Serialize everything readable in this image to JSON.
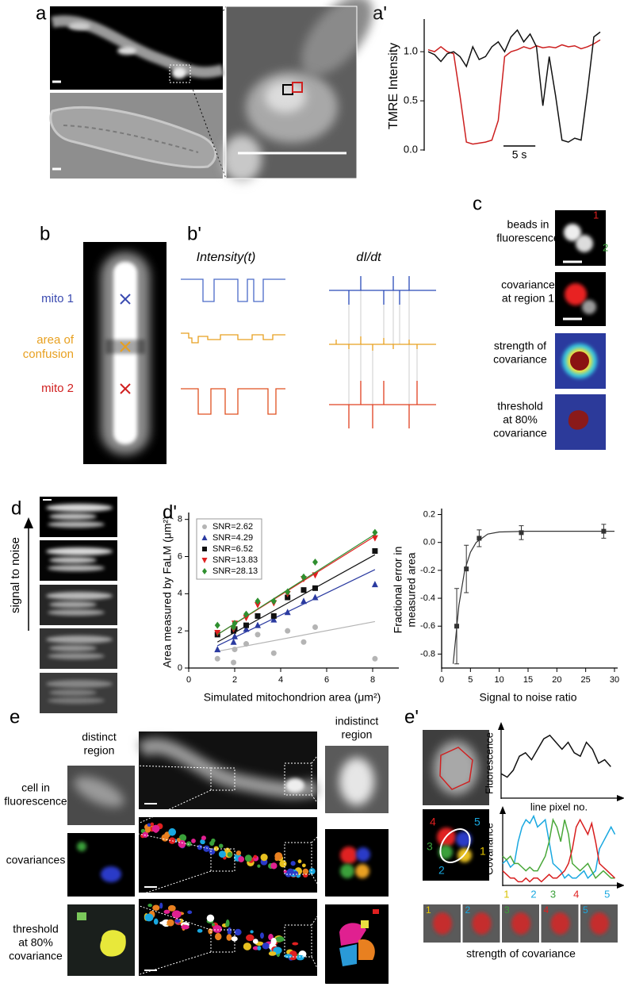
{
  "figure": {
    "panel_labels": [
      "a",
      "a'",
      "b",
      "b'",
      "c",
      "d",
      "d'",
      "e",
      "e'"
    ],
    "b": {
      "mito1": "mito 1",
      "confusion": [
        "area of",
        "confusion"
      ],
      "mito2": "mito 2"
    },
    "b_prime": {
      "intensity": "Intensity(t)",
      "derivative": "dI/dt"
    },
    "c": {
      "rows": [
        [
          "beads in",
          "fluorescence"
        ],
        [
          "covariance",
          "at region 1"
        ],
        [
          "strength of",
          "covariance"
        ],
        [
          "threshold",
          "at 80%",
          "covariance"
        ]
      ],
      "bead_labels": [
        "1",
        "2"
      ]
    },
    "d": {
      "axis_label": "signal to noise"
    },
    "e": {
      "columns": [
        [
          "distinct",
          "region"
        ],
        [
          "indistinct",
          "region"
        ]
      ],
      "rows": [
        [
          "cell in",
          "fluorescence"
        ],
        [
          "covariances"
        ],
        [
          "threshold",
          "at 80%",
          "covariance"
        ]
      ]
    },
    "e_prime": {
      "region_labels": [
        "4",
        "5",
        "3",
        "1",
        "2"
      ],
      "thumb_labels": [
        "1",
        "2",
        "3",
        "4",
        "5"
      ],
      "caption": "strength of covariance"
    }
  },
  "chart_data": [
    {
      "type": "line",
      "ylabel": "TMRE Intensity",
      "x": [
        0,
        1,
        2,
        3,
        4,
        5,
        6,
        7,
        8,
        9,
        10,
        11,
        12,
        13,
        14,
        15,
        16,
        17,
        18,
        19,
        20,
        21,
        22,
        23,
        24,
        25,
        26,
        27
      ],
      "xlim": [
        0,
        27
      ],
      "ylim": [
        0,
        1.3
      ],
      "yticks": [
        {
          "value": 0,
          "label": "0.0"
        },
        {
          "value": 0.5,
          "label": "0.5"
        },
        {
          "value": 1,
          "label": "1.0"
        }
      ],
      "scale_bar": {
        "length": 5,
        "label": "5 s"
      },
      "series": [
        {
          "color": "#cc1f1f",
          "values": [
            1.02,
            1.0,
            1.05,
            1.0,
            0.98,
            0.55,
            0.08,
            0.06,
            0.07,
            0.08,
            0.1,
            0.3,
            0.95,
            1.0,
            1.02,
            1.05,
            1.03,
            1.06,
            1.04,
            1.05,
            1.04,
            1.07,
            1.05,
            1.06,
            1.03,
            1.05,
            1.08,
            1.12
          ]
        },
        {
          "color": "#111111",
          "values": [
            1.0,
            0.97,
            0.9,
            0.98,
            1.0,
            0.95,
            0.85,
            1.05,
            0.92,
            0.95,
            1.05,
            1.1,
            1.0,
            1.15,
            1.22,
            1.1,
            1.18,
            1.05,
            0.45,
            0.95,
            0.55,
            0.1,
            0.08,
            0.12,
            0.1,
            0.6,
            1.15,
            1.2
          ]
        }
      ]
    },
    {
      "type": "scatter",
      "xlabel": "Simulated mitochondrion area (μm²)",
      "ylabel": "Area measured by FaLM (μm²)",
      "x": [
        1.25,
        1.95,
        2.0,
        2.5,
        3.0,
        3.7,
        4.3,
        5.0,
        5.5,
        8.1
      ],
      "xlim": [
        0,
        9
      ],
      "xticks": [
        0,
        2,
        4,
        6,
        8
      ],
      "ylim": [
        0,
        8.2
      ],
      "yticks": [
        0,
        2,
        4,
        6,
        8
      ],
      "legend": "upper left",
      "series": [
        {
          "name": "SNR=2.62",
          "color": "#b4b4b4",
          "marker": "circle",
          "values": [
            0.5,
            0.3,
            1.0,
            1.3,
            1.8,
            0.8,
            2.0,
            1.4,
            2.2,
            0.5
          ],
          "fit": {
            "x": [
              1.25,
              8.1
            ],
            "values": [
              0.9,
              2.5
            ]
          }
        },
        {
          "name": "SNR=4.29",
          "color": "#2a3aa0",
          "marker": "triangle",
          "values": [
            1.0,
            1.4,
            1.7,
            2.1,
            2.3,
            2.6,
            3.0,
            3.6,
            3.8,
            4.5
          ],
          "fit": {
            "x": [
              1.25,
              8.1
            ],
            "values": [
              1.2,
              5.3
            ]
          }
        },
        {
          "name": "SNR=6.52",
          "color": "#111111",
          "marker": "square",
          "values": [
            1.8,
            2.0,
            2.1,
            2.3,
            2.8,
            2.8,
            3.8,
            4.2,
            4.3,
            6.3
          ],
          "fit": {
            "x": [
              1.25,
              8.1
            ],
            "values": [
              1.4,
              6.1
            ]
          }
        },
        {
          "name": "SNR=13.83",
          "color": "#e02020",
          "marker": "triangle-down",
          "values": [
            1.9,
            2.1,
            2.4,
            2.7,
            3.4,
            3.5,
            4.0,
            4.8,
            5.0,
            7.0
          ],
          "fit": {
            "x": [
              1.25,
              8.1
            ],
            "values": [
              1.8,
              7.1
            ]
          }
        },
        {
          "name": "SNR=28.13",
          "color": "#2f8f2f",
          "marker": "diamond",
          "values": [
            2.3,
            2.2,
            2.4,
            2.9,
            3.6,
            3.6,
            4.1,
            4.9,
            5.7,
            7.3
          ],
          "fit": {
            "x": [
              1.25,
              8.1
            ],
            "values": [
              1.8,
              7.2
            ]
          }
        }
      ]
    },
    {
      "type": "errorbar",
      "xlabel": "Signal to noise ratio",
      "ylabel": [
        "Fractional error in",
        "measured area"
      ],
      "x": [
        2.62,
        4.29,
        6.52,
        13.83,
        28.13
      ],
      "values": [
        -0.6,
        -0.19,
        0.03,
        0.07,
        0.08
      ],
      "errors": [
        0.27,
        0.17,
        0.06,
        0.05,
        0.05
      ],
      "xlim": [
        0,
        30
      ],
      "xticks": [
        0,
        5,
        10,
        15,
        20,
        25,
        30
      ],
      "ylim": [
        -0.9,
        0.22
      ],
      "yticks": [
        0.2,
        {
          "value": 0,
          "label": "0.0"
        },
        -0.2,
        -0.4,
        -0.6,
        -0.8
      ],
      "color": "#333333",
      "fit": {
        "x": [
          2,
          3,
          4,
          5,
          6,
          8,
          10,
          15,
          20,
          30
        ],
        "values": [
          -0.87,
          -0.45,
          -0.2,
          -0.07,
          0.0,
          0.06,
          0.075,
          0.08,
          0.08,
          0.08
        ]
      }
    },
    {
      "type": "line",
      "xlabel": "line pixel no.",
      "ylabel": "Fluorescence",
      "x": [
        0,
        1,
        2,
        3,
        4,
        5,
        6,
        7,
        8,
        9,
        10,
        11,
        12,
        13,
        14,
        15,
        16,
        17,
        18
      ],
      "xlim": [
        0,
        19
      ],
      "ylim": [
        0,
        10
      ],
      "series": [
        {
          "color": "#111111",
          "values": [
            3.5,
            3,
            4,
            6,
            6.5,
            5.5,
            7,
            8.5,
            9,
            8,
            7,
            8,
            6.5,
            6,
            8,
            7,
            5,
            5.5,
            4.5
          ]
        }
      ]
    },
    {
      "type": "line",
      "ylabel": "Covariance",
      "x": [
        0,
        1,
        2,
        3,
        4,
        5,
        6,
        7,
        8,
        9,
        10,
        11,
        12,
        13,
        14,
        15,
        16,
        17,
        18,
        19,
        20,
        21,
        22,
        23,
        24,
        25,
        26,
        27,
        28,
        29
      ],
      "xlim": [
        0,
        29.5
      ],
      "ylim": [
        0,
        10
      ],
      "xticks": [
        {
          "value": 1,
          "label": "1"
        },
        {
          "value": 8,
          "label": "2"
        },
        {
          "value": 13,
          "label": "3"
        },
        {
          "value": 19,
          "label": "4"
        },
        {
          "value": 27,
          "label": "5"
        }
      ],
      "xtick_colors": [
        "#d9c200",
        "#19a8e0",
        "#3aa03a",
        "#e02020",
        "#19a8e0"
      ],
      "series": [
        {
          "color": "#19a8e0",
          "values": [
            3,
            3.5,
            2.5,
            3,
            6,
            8,
            9,
            8.5,
            9.5,
            8,
            8.5,
            9,
            6,
            3,
            2.5,
            2,
            1,
            1.5,
            1,
            1,
            1.5,
            2,
            1,
            1.5,
            2,
            5,
            6,
            7,
            8,
            7
          ]
        },
        {
          "color": "#4aa83a",
          "values": [
            4,
            3.5,
            4,
            3,
            3,
            2.5,
            2,
            2.5,
            2,
            2,
            3,
            4,
            6,
            9,
            8,
            6,
            9,
            7,
            3,
            2.5,
            2,
            2.5,
            3,
            2,
            1,
            1.5,
            2,
            1.5,
            1,
            1
          ]
        },
        {
          "color": "#d81e1e",
          "values": [
            2,
            1.5,
            1,
            1,
            0.5,
            0.5,
            1,
            0.5,
            1,
            1,
            0.5,
            1,
            1.5,
            1,
            1,
            1.5,
            2,
            3,
            5,
            8,
            9,
            8,
            7,
            8.5,
            6,
            3,
            2.5,
            2,
            1.5,
            1
          ]
        }
      ]
    }
  ]
}
